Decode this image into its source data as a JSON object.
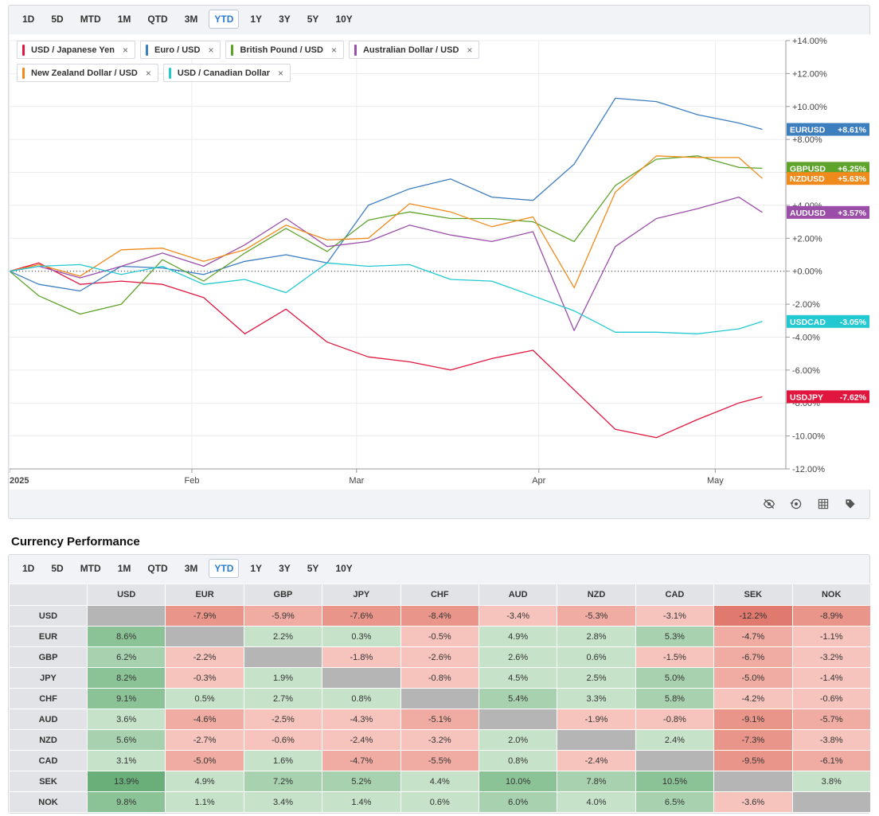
{
  "range_buttons": [
    "1D",
    "5D",
    "MTD",
    "1M",
    "QTD",
    "3M",
    "YTD",
    "1Y",
    "3Y",
    "5Y",
    "10Y"
  ],
  "active_range": "YTD",
  "legend": [
    {
      "label": "USD / Japanese Yen",
      "color": "#e0163e"
    },
    {
      "label": "Euro / USD",
      "color": "#3d7ebf"
    },
    {
      "label": "British Pound / USD",
      "color": "#5ea32a"
    },
    {
      "label": "Australian Dollar / USD",
      "color": "#9a4ea8"
    },
    {
      "label": "New Zealand Dollar / USD",
      "color": "#f08a1a"
    },
    {
      "label": "USD / Canadian Dollar",
      "color": "#22c9d1"
    }
  ],
  "toolbar_icons": [
    "hide-icon",
    "reset-icon",
    "grid-icon",
    "tag-icon"
  ],
  "chart_data": {
    "type": "line",
    "x": [
      "2025-01-01",
      "2025-01-06",
      "2025-01-13",
      "2025-01-20",
      "2025-01-27",
      "2025-02-03",
      "2025-02-10",
      "2025-02-17",
      "2025-02-24",
      "2025-03-03",
      "2025-03-10",
      "2025-03-17",
      "2025-03-24",
      "2025-03-31",
      "2025-04-07",
      "2025-04-14",
      "2025-04-21",
      "2025-04-28",
      "2025-05-05",
      "2025-05-09"
    ],
    "x_tick_labels": [
      "2025",
      "Feb",
      "Mar",
      "Apr",
      "May"
    ],
    "y_tick_labels": [
      "+14.00%",
      "+12.00%",
      "+10.00%",
      "+8.00%",
      "+6.00%",
      "+4.00%",
      "+2.00%",
      "+0.00%",
      "-2.00%",
      "-4.00%",
      "-6.00%",
      "-8.00%",
      "-10.00%",
      "-12.00%"
    ],
    "ylim": [
      -12,
      14
    ],
    "zero_line": true,
    "series": [
      {
        "name": "USDJPY",
        "end_label": "-7.62%",
        "color": "#e0163e",
        "values": [
          0.0,
          0.5,
          -0.8,
          -0.6,
          -0.8,
          -1.6,
          -3.8,
          -2.3,
          -4.3,
          -5.2,
          -5.5,
          -6.0,
          -5.3,
          -4.8,
          -7.2,
          -9.6,
          -10.1,
          -9.0,
          -8.0,
          -7.62
        ]
      },
      {
        "name": "EURUSD",
        "end_label": "+8.61%",
        "color": "#3d7ebf",
        "values": [
          0.0,
          -0.8,
          -1.2,
          0.3,
          0.2,
          -0.2,
          0.6,
          1.0,
          0.5,
          4.0,
          5.0,
          5.6,
          4.5,
          4.3,
          6.5,
          10.5,
          10.3,
          9.5,
          9.0,
          8.61
        ]
      },
      {
        "name": "GBPUSD",
        "end_label": "+6.25%",
        "color": "#5ea32a",
        "values": [
          0.0,
          -1.5,
          -2.6,
          -2.0,
          0.7,
          -0.6,
          1.1,
          2.6,
          1.2,
          3.1,
          3.6,
          3.2,
          3.2,
          3.0,
          1.8,
          5.2,
          6.8,
          7.0,
          6.3,
          6.25
        ]
      },
      {
        "name": "AUDUSD",
        "end_label": "+3.57%",
        "color": "#9a4ea8",
        "values": [
          0.0,
          0.3,
          -0.4,
          0.3,
          1.1,
          0.3,
          1.6,
          3.2,
          1.5,
          1.8,
          2.8,
          2.2,
          1.8,
          2.4,
          -3.6,
          1.5,
          3.2,
          3.8,
          4.5,
          3.57
        ]
      },
      {
        "name": "NZDUSD",
        "end_label": "+5.63%",
        "color": "#f08a1a",
        "values": [
          0.0,
          0.4,
          -0.3,
          1.3,
          1.4,
          0.6,
          1.3,
          2.8,
          1.9,
          2.0,
          4.1,
          3.6,
          2.7,
          3.3,
          -1.0,
          4.8,
          7.0,
          6.9,
          6.9,
          5.63
        ]
      },
      {
        "name": "USDCAD",
        "end_label": "-3.05%",
        "color": "#22c9d1",
        "values": [
          0.0,
          0.3,
          0.4,
          -0.2,
          0.3,
          -0.8,
          -0.5,
          -1.3,
          0.5,
          0.3,
          0.4,
          -0.5,
          -0.6,
          -1.5,
          -2.4,
          -3.7,
          -3.7,
          -3.8,
          -3.5,
          -3.05
        ]
      }
    ]
  },
  "performance": {
    "title": "Currency Performance",
    "columns": [
      "USD",
      "EUR",
      "GBP",
      "JPY",
      "CHF",
      "AUD",
      "NZD",
      "CAD",
      "SEK",
      "NOK"
    ],
    "rows": [
      {
        "label": "USD",
        "cells": [
          "",
          "-7.9%",
          "-5.9%",
          "-7.6%",
          "-8.4%",
          "-3.4%",
          "-5.3%",
          "-3.1%",
          "-12.2%",
          "-8.9%"
        ]
      },
      {
        "label": "EUR",
        "cells": [
          "8.6%",
          "",
          "2.2%",
          "0.3%",
          "-0.5%",
          "4.9%",
          "2.8%",
          "5.3%",
          "-4.7%",
          "-1.1%"
        ]
      },
      {
        "label": "GBP",
        "cells": [
          "6.2%",
          "-2.2%",
          "",
          "-1.8%",
          "-2.6%",
          "2.6%",
          "0.6%",
          "-1.5%",
          "-6.7%",
          "-3.2%"
        ]
      },
      {
        "label": "JPY",
        "cells": [
          "8.2%",
          "-0.3%",
          "1.9%",
          "",
          "-0.8%",
          "4.5%",
          "2.5%",
          "5.0%",
          "-5.0%",
          "-1.4%"
        ]
      },
      {
        "label": "CHF",
        "cells": [
          "9.1%",
          "0.5%",
          "2.7%",
          "0.8%",
          "",
          "5.4%",
          "3.3%",
          "5.8%",
          "-4.2%",
          "-0.6%"
        ]
      },
      {
        "label": "AUD",
        "cells": [
          "3.6%",
          "-4.6%",
          "-2.5%",
          "-4.3%",
          "-5.1%",
          "",
          "-1.9%",
          "-0.8%",
          "-9.1%",
          "-5.7%"
        ]
      },
      {
        "label": "NZD",
        "cells": [
          "5.6%",
          "-2.7%",
          "-0.6%",
          "-2.4%",
          "-3.2%",
          "2.0%",
          "",
          "2.4%",
          "-7.3%",
          "-3.8%"
        ]
      },
      {
        "label": "CAD",
        "cells": [
          "3.1%",
          "-5.0%",
          "1.6%",
          "-4.7%",
          "-5.5%",
          "0.8%",
          "-2.4%",
          "",
          "-9.5%",
          "-6.1%"
        ]
      },
      {
        "label": "SEK",
        "cells": [
          "13.9%",
          "4.9%",
          "7.2%",
          "5.2%",
          "4.4%",
          "10.0%",
          "7.8%",
          "10.5%",
          "",
          "3.8%"
        ]
      },
      {
        "label": "NOK",
        "cells": [
          "9.8%",
          "1.1%",
          "3.4%",
          "1.4%",
          "0.6%",
          "6.0%",
          "4.0%",
          "6.5%",
          "-3.6%",
          ""
        ]
      }
    ]
  }
}
